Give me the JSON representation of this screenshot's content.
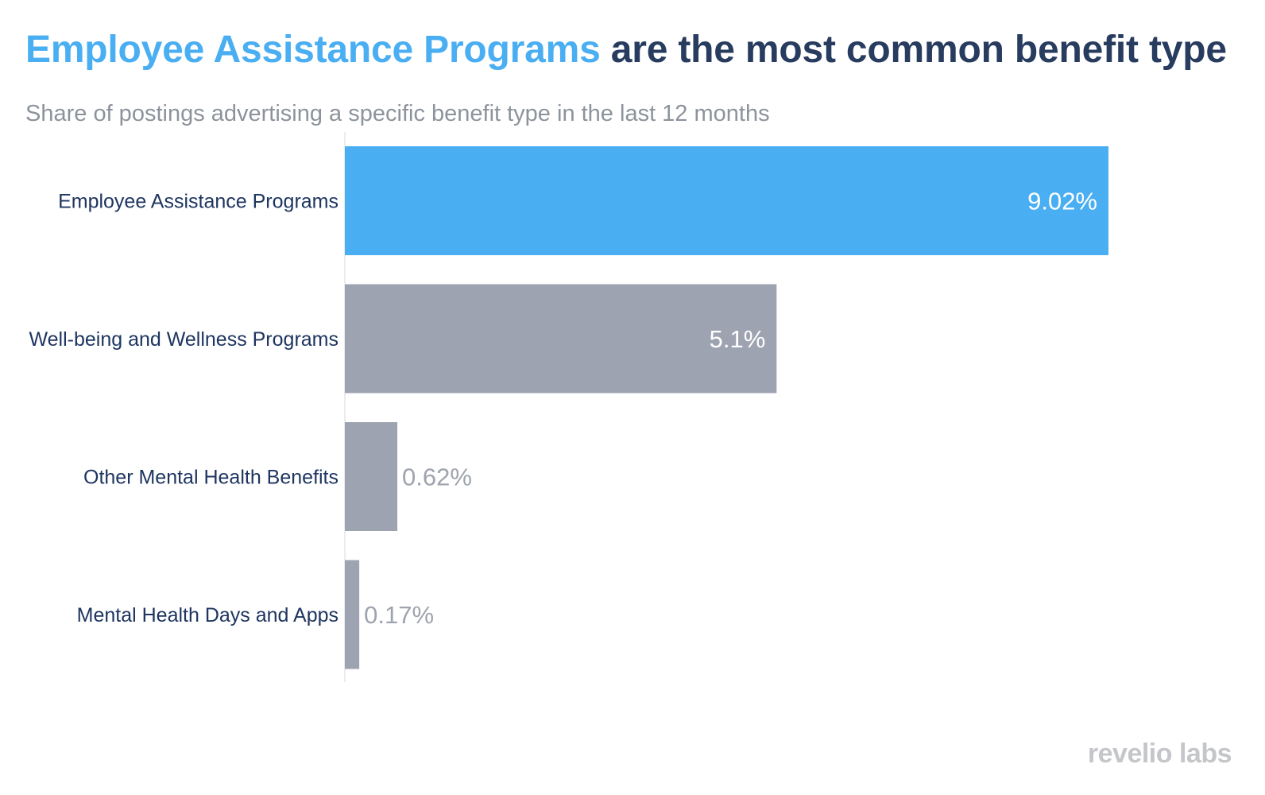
{
  "title": {
    "highlight": "Employee Assistance Programs",
    "rest": " are the most common benefit type"
  },
  "subtitle": "Share of postings advertising a specific benefit type in the last 12 months",
  "logo": "revelio labs",
  "colors": {
    "highlight": "#4aaef2",
    "title_dark": "#283c5f",
    "bar_default": "#9ea3b1",
    "bar_highlight": "#4aaef2",
    "label": "#1e3560",
    "value_outside": "#9ea3ae"
  },
  "chart_data": {
    "type": "bar",
    "orientation": "horizontal",
    "title": "Employee Assistance Programs are the most common benefit type",
    "subtitle": "Share of postings advertising a specific benefit type in the last 12 months",
    "categories": [
      "Employee Assistance Programs",
      "Well-being and Wellness Programs",
      "Other Mental Health Benefits",
      "Mental Health Days and Apps"
    ],
    "values": [
      9.02,
      5.1,
      0.62,
      0.17
    ],
    "value_labels": [
      "9.02%",
      "5.1%",
      "0.62%",
      "0.17%"
    ],
    "highlighted": [
      true,
      false,
      false,
      false
    ],
    "unit": "%",
    "xlim": [
      0,
      9.02
    ],
    "xlabel": "",
    "ylabel": "",
    "grid": false
  }
}
